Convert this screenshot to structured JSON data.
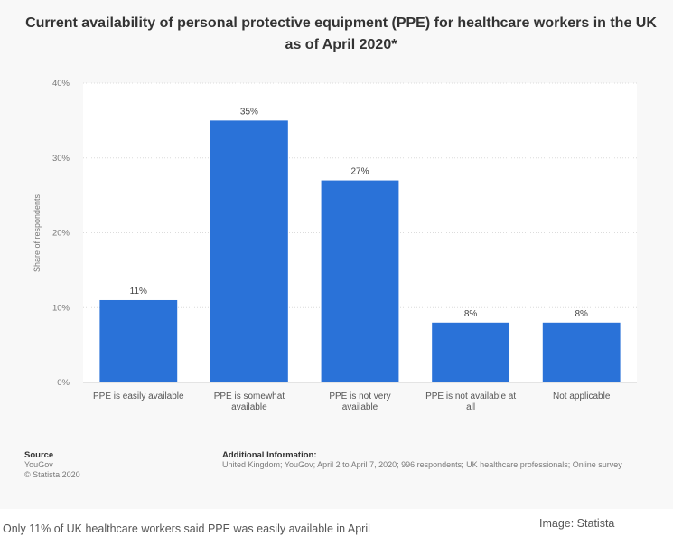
{
  "chart_data": {
    "type": "bar",
    "title": "Current availability of personal protective equipment (PPE) for healthcare workers in the UK as of April 2020*",
    "ylabel": "Share of respondents",
    "xlabel": "",
    "ylim": [
      0,
      40
    ],
    "yticks": [
      "0%",
      "10%",
      "20%",
      "30%",
      "40%"
    ],
    "grid": true,
    "categories": [
      [
        "PPE is easily available"
      ],
      [
        "PPE is somewhat",
        "available"
      ],
      [
        "PPE is not very",
        "available"
      ],
      [
        "PPE is not available at",
        "all"
      ],
      [
        "Not applicable"
      ]
    ],
    "values": [
      11,
      35,
      27,
      8,
      8
    ],
    "value_labels": [
      "11%",
      "35%",
      "27%",
      "8%",
      "8%"
    ],
    "bar_color": "#2a72d8"
  },
  "source": {
    "heading": "Source",
    "lines": [
      "YouGov",
      "© Statista 2020"
    ]
  },
  "additional_info": {
    "heading": "Additional Information:",
    "text": "United Kingdom; YouGov; April 2 to April 7, 2020; 996 respondents; UK healthcare professionals; Online survey"
  },
  "caption": "Only 11% of UK healthcare workers said PPE was easily available in April",
  "credit": "Image: Statista"
}
